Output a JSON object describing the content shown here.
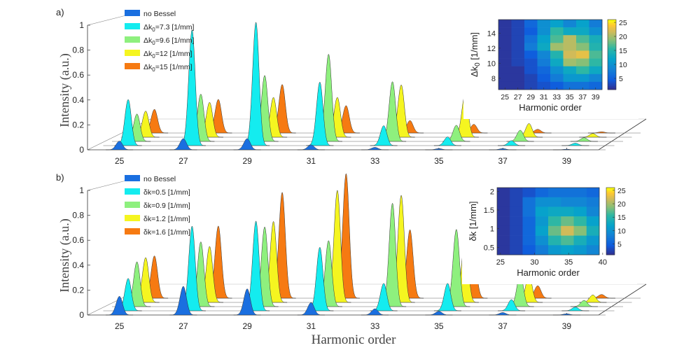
{
  "figure": {
    "xlabel": "Harmonic order",
    "ylabel": "Intensity  (a.u.)"
  },
  "chart_data": [
    {
      "type": "area",
      "panel_label": "a)",
      "ylabel": "Intensity  (a.u.)",
      "xlabel": "Harmonic order",
      "xlim": [
        24,
        40
      ],
      "ylim": [
        0,
        1
      ],
      "xticks": [
        "25",
        "27",
        "29",
        "31",
        "33",
        "35",
        "37",
        "39"
      ],
      "yticks": [
        "0",
        "0.2",
        "0.4",
        "0.6",
        "0.8",
        "1"
      ],
      "legend": [
        "no Bessel",
        "Δk0=7.3 [1/mm]",
        "Δk0=9.6 [1/mm]",
        "Δk0=12 [1/mm]",
        "Δk0=15 [1/mm]"
      ],
      "legend_main": [
        "no Bessel",
        "Δk",
        "Δk",
        "Δk",
        "Δk"
      ],
      "legend_sub": [
        "",
        "0",
        "0",
        "0",
        "0"
      ],
      "legend_value": [
        "",
        "=7.3 [1/mm]",
        "=9.6 [1/mm]",
        "=12 [1/mm]",
        "=15 [1/mm]"
      ],
      "colors": [
        "#1a6fe0",
        "#14ecef",
        "#8ef07e",
        "#f5f520",
        "#f67a12"
      ],
      "harmonics": [
        25,
        27,
        29,
        31,
        33,
        35,
        37,
        39
      ],
      "series": [
        {
          "name": "no Bessel",
          "values": [
            0.07,
            0.09,
            0.09,
            0.04,
            0.02,
            0.01,
            0.01,
            0.005
          ]
        },
        {
          "name": "Δk0=7.3 [1/mm]",
          "values": [
            0.37,
            0.93,
            0.99,
            0.51,
            0.16,
            0.07,
            0.04,
            0.02
          ]
        },
        {
          "name": "Δk0=9.6 [1/mm]",
          "values": [
            0.22,
            0.38,
            0.53,
            0.7,
            0.48,
            0.13,
            0.09,
            0.03
          ]
        },
        {
          "name": "Δk0=12 [1/mm]",
          "values": [
            0.21,
            0.28,
            0.32,
            0.32,
            0.42,
            0.34,
            0.11,
            0.03
          ]
        },
        {
          "name": "Δk0=15 [1/mm]",
          "values": [
            0.19,
            0.27,
            0.39,
            0.22,
            0.1,
            0.07,
            0.03,
            0.01
          ]
        }
      ],
      "inset": {
        "type": "heatmap",
        "xlabel": "Harmonic order",
        "ylabel_main": "Δk",
        "ylabel_sub": "0",
        "ylabel_unit": " [1/mm]",
        "x": [
          25,
          27,
          29,
          31,
          33,
          35,
          37,
          39
        ],
        "xticks": [
          "25",
          "27",
          "29",
          "31",
          "33",
          "35",
          "37",
          "39"
        ],
        "y": [
          7.3,
          9.6,
          12,
          15
        ],
        "yticks": [
          "8",
          "10",
          "12",
          "14"
        ],
        "ytick_values": [
          8,
          10,
          12,
          14
        ],
        "ylim": [
          6.5,
          15.8
        ],
        "colorbar_ticks": [
          "25",
          "20",
          "15",
          "10",
          "5"
        ],
        "colorbar_values": [
          25,
          20,
          15,
          10,
          5
        ],
        "clim": [
          1,
          26
        ],
        "values": [
          [
            2,
            3,
            6,
            10,
            12,
            9,
            12,
            8
          ],
          [
            2,
            3,
            5,
            10,
            16,
            13,
            13,
            10
          ],
          [
            2,
            3,
            7,
            12,
            17,
            21,
            17,
            14
          ],
          [
            2,
            3,
            8,
            13,
            20,
            21,
            19,
            15
          ],
          [
            2,
            3,
            5,
            9,
            15,
            22,
            23,
            17
          ],
          [
            2,
            3,
            4,
            8,
            13,
            20,
            19,
            16
          ],
          [
            2,
            2,
            4,
            6,
            10,
            13,
            16,
            13
          ],
          [
            2,
            2,
            3,
            5,
            8,
            11,
            11,
            9
          ],
          [
            2,
            2,
            3,
            4,
            5,
            7,
            7,
            6
          ]
        ]
      }
    },
    {
      "type": "area",
      "panel_label": "b)",
      "ylabel": "Intensity  (a.u.)",
      "xlabel": "Harmonic order",
      "xlim": [
        24,
        40
      ],
      "ylim": [
        0,
        1
      ],
      "xticks": [
        "25",
        "27",
        "29",
        "31",
        "33",
        "35",
        "37",
        "39"
      ],
      "yticks": [
        "0",
        "0.2",
        "0.4",
        "0.6",
        "0.8",
        "1"
      ],
      "legend": [
        "no Bessel",
        "δk=0.5 [1/mm]",
        "δk=0.9 [1/mm]",
        "δk=1.2 [1/mm]",
        "δk=1.6 [1/mm]"
      ],
      "legend_main": [
        "no Bessel",
        "δk=0.5 [1/mm]",
        "δk=0.9 [1/mm]",
        "δk=1.2 [1/mm]",
        "δk=1.6 [1/mm]"
      ],
      "legend_sub": [
        "",
        "",
        "",
        "",
        ""
      ],
      "legend_value": [
        "",
        "",
        "",
        "",
        ""
      ],
      "colors": [
        "#1a6fe0",
        "#14ecef",
        "#8ef07e",
        "#f5f520",
        "#f67a12"
      ],
      "harmonics": [
        25,
        27,
        29,
        31,
        33,
        35,
        37,
        39
      ],
      "series": [
        {
          "name": "no Bessel",
          "values": [
            0.15,
            0.23,
            0.21,
            0.1,
            0.05,
            0.03,
            0.02,
            0.01
          ]
        },
        {
          "name": "δk=0.5 [1/mm]",
          "values": [
            0.26,
            0.68,
            0.72,
            0.51,
            0.22,
            0.22,
            0.09,
            0.03
          ]
        },
        {
          "name": "δk=0.9 [1/mm]",
          "values": [
            0.36,
            0.52,
            0.64,
            0.53,
            0.83,
            0.62,
            0.26,
            0.05
          ]
        },
        {
          "name": "δk=1.2 [1/mm]",
          "values": [
            0.36,
            0.45,
            0.65,
            0.9,
            0.86,
            0.52,
            0.22,
            0.06
          ]
        },
        {
          "name": "δk=1.6 [1/mm]",
          "values": [
            0.34,
            0.58,
            0.85,
            1.0,
            0.55,
            0.31,
            0.1,
            0.03
          ]
        }
      ],
      "inset": {
        "type": "heatmap",
        "xlabel": "Harmonic order",
        "ylabel_main": "δk [1/mm]",
        "ylabel_sub": "",
        "ylabel_unit": "",
        "x": [
          25,
          30,
          35,
          40
        ],
        "xticks": [
          "25",
          "30",
          "35",
          "40"
        ],
        "xtick_values": [
          25,
          30,
          35,
          40
        ],
        "xlim": [
          24.5,
          39.5
        ],
        "y": [
          0.5,
          1,
          1.5,
          2
        ],
        "yticks": [
          "0.5",
          "1",
          "1.5",
          "2"
        ],
        "ytick_values": [
          0.5,
          1,
          1.5,
          2
        ],
        "ylim": [
          0.3,
          2.1
        ],
        "colorbar_ticks": [
          "25",
          "20",
          "15",
          "10",
          "5"
        ],
        "colorbar_values": [
          25,
          20,
          15,
          10,
          5
        ],
        "clim": [
          1,
          26
        ],
        "values": [
          [
            2,
            3,
            4,
            6,
            7,
            7,
            7,
            6
          ],
          [
            2,
            3,
            7,
            10,
            10,
            9,
            9,
            8
          ],
          [
            2,
            3,
            7,
            12,
            13,
            13,
            12,
            9
          ],
          [
            2,
            3,
            6,
            11,
            16,
            18,
            16,
            12
          ],
          [
            2,
            3,
            6,
            12,
            18,
            22,
            19,
            14
          ],
          [
            2,
            3,
            6,
            10,
            15,
            17,
            14,
            11
          ],
          [
            2,
            3,
            5,
            8,
            11,
            12,
            11,
            9
          ]
        ]
      }
    }
  ]
}
